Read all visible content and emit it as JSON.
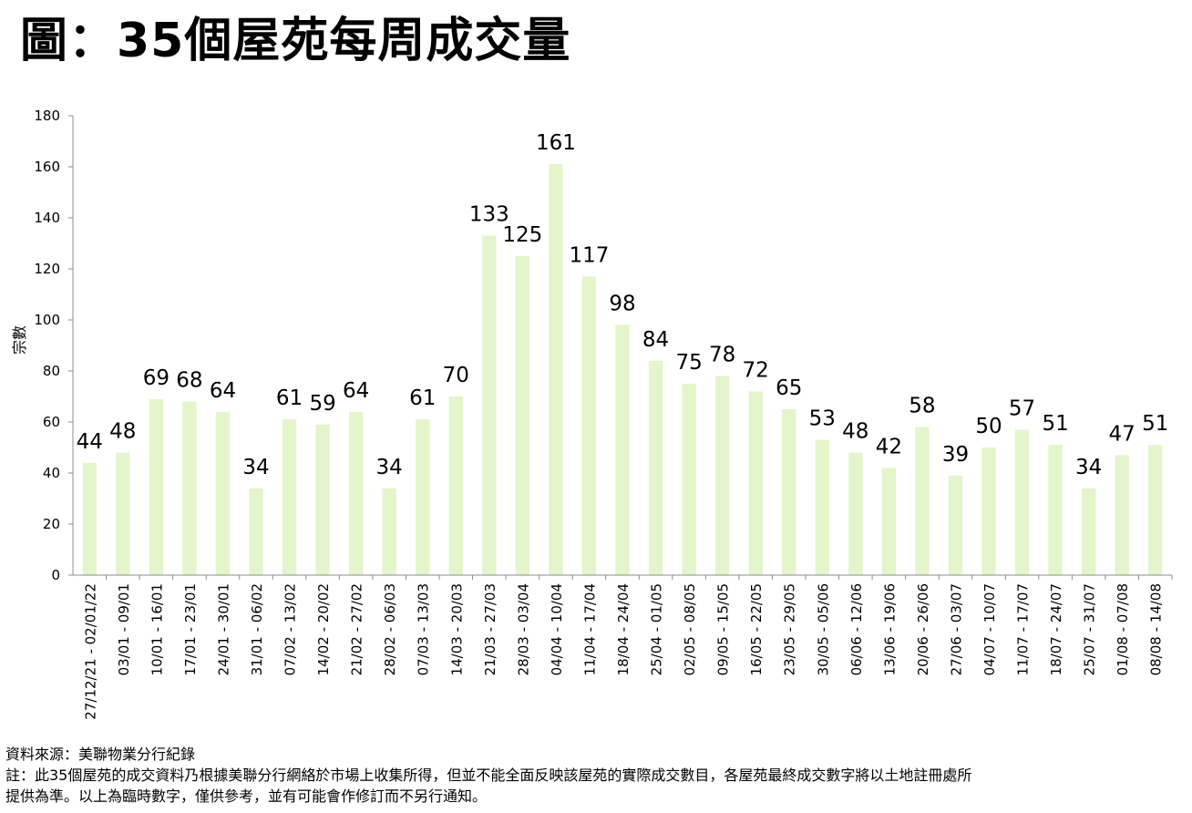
{
  "title": "圖：35個屋苑每周成交量",
  "footnotes": {
    "source": "資料來源：美聯物業分行紀錄",
    "note_line1": "註：此35個屋苑的成交資料乃根據美聯分行網絡於市場上收集所得，但並不能全面反映該屋苑的實際成交數目，各屋苑最終成交數字將以土地註冊處所",
    "note_line2": "提供為準。以上為臨時數字，僅供參考，並有可能會作修訂而不另行通知。"
  },
  "colors": {
    "bar": "#e2f5cb",
    "axis": "#8c8c8c"
  },
  "chart_data": {
    "type": "bar",
    "title": "圖：35個屋苑每周成交量",
    "xlabel": "",
    "ylabel": "宗數",
    "ylim": [
      0,
      180
    ],
    "yticks": [
      0,
      20,
      40,
      60,
      80,
      100,
      120,
      140,
      160,
      180
    ],
    "grid": false,
    "legend": "none",
    "categories": [
      "27/12/21 - 02/01/22",
      "03/01 - 09/01",
      "10/01 - 16/01",
      "17/01 - 23/01",
      "24/01 - 30/01",
      "31/01 - 06/02",
      "07/02 - 13/02",
      "14/02 - 20/02",
      "21/02 - 27/02",
      "28/02 - 06/03",
      "07/03 - 13/03",
      "14/03 - 20/03",
      "21/03 - 27/03",
      "28/03 - 03/04",
      "04/04 - 10/04",
      "11/04 - 17/04",
      "18/04 - 24/04",
      "25/04 - 01/05",
      "02/05 - 08/05",
      "09/05 - 15/05",
      "16/05 - 22/05",
      "23/05 - 29/05",
      "30/05 - 05/06",
      "06/06 - 12/06",
      "13/06 - 19/06",
      "20/06 - 26/06",
      "27/06 - 03/07",
      "04/07 - 10/07",
      "11/07 - 17/07",
      "18/07 - 24/07",
      "25/07 - 31/07",
      "01/08 - 07/08",
      "08/08 - 14/08"
    ],
    "values": [
      44,
      48,
      69,
      68,
      64,
      34,
      61,
      59,
      64,
      34,
      61,
      70,
      133,
      125,
      161,
      117,
      98,
      84,
      75,
      78,
      72,
      65,
      53,
      48,
      42,
      58,
      39,
      50,
      57,
      51,
      34,
      47,
      51
    ]
  }
}
